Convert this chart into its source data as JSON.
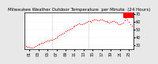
{
  "title": "Milwaukee Weather Outdoor Temperature  per Minute  (24 Hours)",
  "background_color": "#e8e8e8",
  "plot_bg_color": "#ffffff",
  "line_color": "#ff0000",
  "highlight_color": "#ff0000",
  "x_values": [
    0,
    20,
    40,
    60,
    80,
    100,
    120,
    140,
    160,
    180,
    200,
    220,
    240,
    260,
    280,
    300,
    320,
    340,
    360,
    380,
    400,
    420,
    440,
    460,
    480,
    500,
    520,
    540,
    560,
    580,
    600,
    620,
    640,
    660,
    680,
    700,
    720,
    740,
    760,
    780,
    800,
    820,
    840,
    860,
    880,
    900,
    920,
    940,
    960,
    980,
    1000,
    1020,
    1040,
    1060,
    1080,
    1100,
    1120,
    1140,
    1160,
    1180,
    1200,
    1220,
    1240,
    1260,
    1280,
    1300,
    1320,
    1340,
    1360,
    1380,
    1400,
    1420,
    1440
  ],
  "y_values": [
    30,
    29,
    28,
    28,
    27,
    27,
    28,
    29,
    30,
    31,
    32,
    33,
    33,
    34,
    35,
    36,
    36,
    37,
    37,
    38,
    39,
    40,
    42,
    43,
    44,
    45,
    46,
    48,
    49,
    50,
    51,
    52,
    54,
    55,
    56,
    57,
    58,
    57,
    57,
    58,
    59,
    60,
    61,
    61,
    60,
    62,
    63,
    63,
    62,
    62,
    63,
    63,
    62,
    61,
    61,
    60,
    59,
    60,
    61,
    61,
    60,
    59,
    57,
    57,
    58,
    59,
    62,
    65,
    63,
    60,
    57,
    55,
    53
  ],
  "ylim": [
    25,
    72
  ],
  "xlim": [
    0,
    1440
  ],
  "yticks": [
    30,
    40,
    50,
    60,
    70
  ],
  "ytick_labels": [
    "30",
    "40",
    "50",
    "60",
    "70"
  ],
  "xtick_labels": [
    "01",
    "03",
    "05",
    "07",
    "09",
    "11",
    "13",
    "15",
    "17",
    "19",
    "21",
    "23"
  ],
  "xtick_positions": [
    60,
    180,
    300,
    420,
    540,
    660,
    780,
    900,
    1020,
    1140,
    1260,
    1380
  ],
  "highlight_xstart": 1300,
  "highlight_xend": 1440,
  "highlight_ystart": 65,
  "highlight_yend": 72,
  "vline1": 360,
  "vline2": 840,
  "title_fontsize": 4.0,
  "tick_fontsize": 3.5,
  "marker_size": 0.8
}
